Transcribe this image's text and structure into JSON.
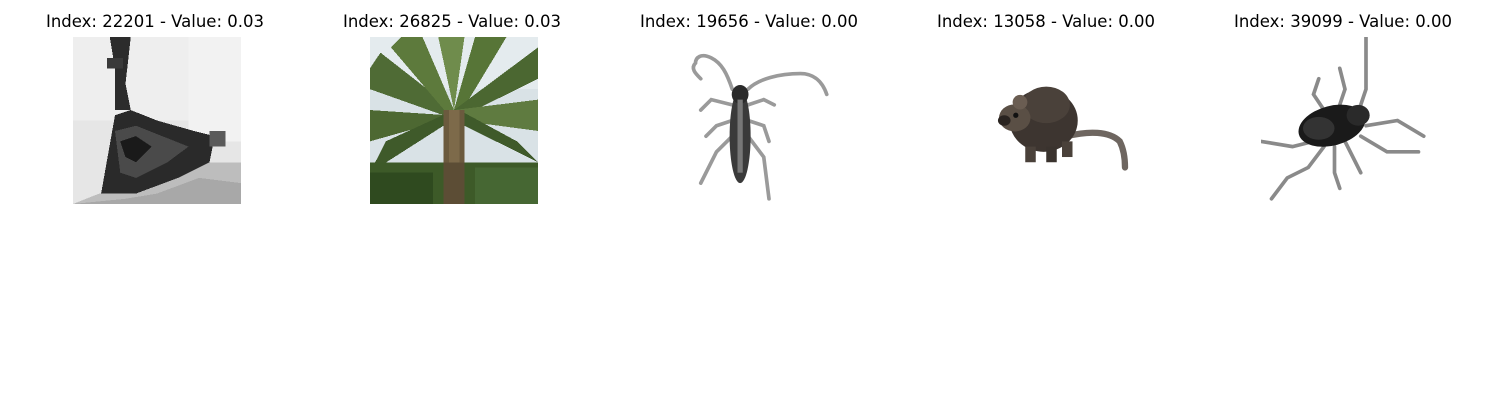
{
  "panels": [
    {
      "title": "Index: 22201 - Value: 0.03",
      "image": "grayscale-triangle-object"
    },
    {
      "title": "Index: 26825 - Value: 0.03",
      "image": "palm-tree"
    },
    {
      "title": "Index: 19656 - Value: 0.00",
      "image": "longhorn-beetle"
    },
    {
      "title": "Index: 13058 - Value: 0.00",
      "image": "mouse"
    },
    {
      "title": "Index: 39099 - Value: 0.00",
      "image": "cockroach"
    }
  ]
}
